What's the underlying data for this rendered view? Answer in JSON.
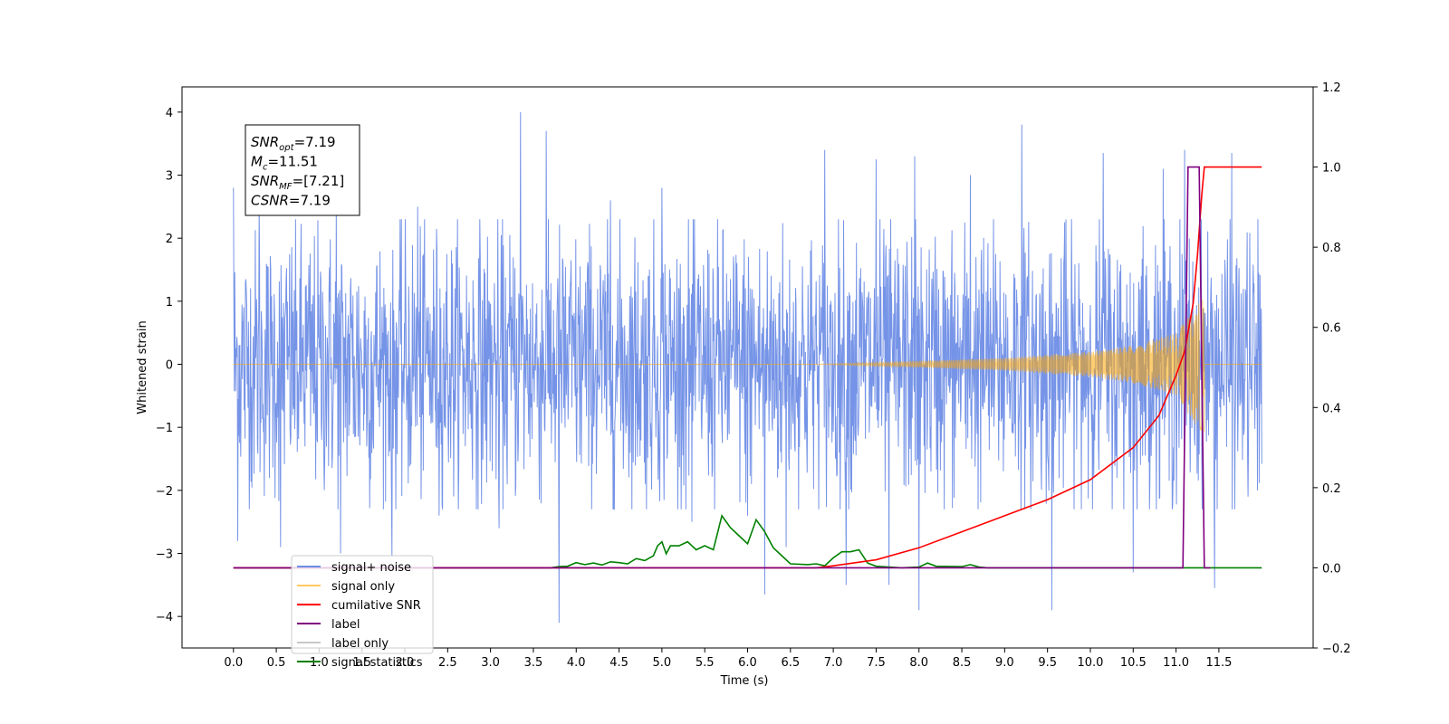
{
  "chart_data": {
    "type": "line",
    "xlabel": "Time (s)",
    "ylabel": "Whitened strain",
    "xlim": [
      -0.6,
      12.6
    ],
    "ylim": [
      -4.5,
      4.4
    ],
    "y2lim": [
      -0.2,
      1.2
    ],
    "x_ticks": [
      0.0,
      0.5,
      1.0,
      1.5,
      2.0,
      2.5,
      3.0,
      3.5,
      4.0,
      4.5,
      5.0,
      5.5,
      6.0,
      6.5,
      7.0,
      7.5,
      8.0,
      8.5,
      9.0,
      9.5,
      10.0,
      10.5,
      11.0,
      11.5
    ],
    "x_tick_labels": [
      "0.0",
      "0.5",
      "1.0",
      "1.5",
      "2.0",
      "2.5",
      "3.0",
      "3.5",
      "4.0",
      "4.5",
      "5.0",
      "5.5",
      "6.0",
      "6.5",
      "7.0",
      "7.5",
      "8.0",
      "8.5",
      "9.0",
      "9.5",
      "10.0",
      "10.5",
      "11.0",
      "11.5"
    ],
    "y_ticks": [
      -4,
      -3,
      -2,
      -1,
      0,
      1,
      2,
      3,
      4
    ],
    "y_tick_labels": [
      "−4",
      "−3",
      "−2",
      "−1",
      "0",
      "1",
      "2",
      "3",
      "4"
    ],
    "y2_ticks": [
      -0.2,
      0.0,
      0.2,
      0.4,
      0.6,
      0.8,
      1.0,
      1.2
    ],
    "y2_tick_labels": [
      "−0.2",
      "0.0",
      "0.2",
      "0.4",
      "0.6",
      "0.8",
      "1.0",
      "1.2"
    ],
    "grid": false,
    "legend_position": "lower-left",
    "info_box": {
      "lines": [
        {
          "base": "SNR",
          "sub": "opt",
          "value": "=7.19"
        },
        {
          "base": "M",
          "sub": "c",
          "value": "=11.51"
        },
        {
          "base": "SNR",
          "sub": "MF",
          "value": "=[7.21]"
        },
        {
          "base": "CSNR",
          "sub": "",
          "value": "=7.19"
        }
      ]
    },
    "series": [
      {
        "name": "signal+ noise",
        "axis": "left",
        "color": "#6f8ee6",
        "t_range": [
          0.0,
          12.0
        ],
        "envelope_typical": [
          -1.6,
          1.6
        ],
        "spike_points": [
          {
            "x": 0.0,
            "y": 2.8
          },
          {
            "x": 0.05,
            "y": -2.8
          },
          {
            "x": 0.3,
            "y": 2.5
          },
          {
            "x": 0.55,
            "y": -2.9
          },
          {
            "x": 1.2,
            "y": 2.45
          },
          {
            "x": 1.25,
            "y": -3.0
          },
          {
            "x": 1.85,
            "y": -3.05
          },
          {
            "x": 2.15,
            "y": 2.5
          },
          {
            "x": 2.4,
            "y": -2.4
          },
          {
            "x": 3.1,
            "y": -2.6
          },
          {
            "x": 3.35,
            "y": 4.0
          },
          {
            "x": 3.65,
            "y": 3.7
          },
          {
            "x": 3.8,
            "y": -4.1
          },
          {
            "x": 4.4,
            "y": 2.6
          },
          {
            "x": 5.0,
            "y": 2.8
          },
          {
            "x": 5.35,
            "y": -2.5
          },
          {
            "x": 6.0,
            "y": -2.4
          },
          {
            "x": 6.2,
            "y": -3.65
          },
          {
            "x": 6.45,
            "y": -2.9
          },
          {
            "x": 6.9,
            "y": 3.4
          },
          {
            "x": 7.15,
            "y": -3.5
          },
          {
            "x": 7.5,
            "y": 3.25
          },
          {
            "x": 7.65,
            "y": -3.5
          },
          {
            "x": 7.95,
            "y": 3.3
          },
          {
            "x": 8.0,
            "y": -3.9
          },
          {
            "x": 8.6,
            "y": 3.0
          },
          {
            "x": 9.2,
            "y": 3.8
          },
          {
            "x": 9.55,
            "y": -3.9
          },
          {
            "x": 10.15,
            "y": 3.35
          },
          {
            "x": 10.5,
            "y": -3.3
          },
          {
            "x": 10.85,
            "y": 3.1
          },
          {
            "x": 11.1,
            "y": 3.4
          },
          {
            "x": 11.45,
            "y": -3.55
          },
          {
            "x": 11.65,
            "y": 3.35
          },
          {
            "x": 11.95,
            "y": -2.0
          }
        ]
      },
      {
        "name": "signal only",
        "axis": "left",
        "color": "#ffa500",
        "t_range": [
          0.0,
          12.0
        ],
        "chirp_start": 6.8,
        "chirp_peak": 11.33,
        "amplitude_points": [
          [
            6.8,
            0.0
          ],
          [
            8.0,
            0.05
          ],
          [
            9.0,
            0.1
          ],
          [
            10.0,
            0.2
          ],
          [
            10.5,
            0.3
          ],
          [
            11.0,
            0.5
          ],
          [
            11.25,
            1.0
          ],
          [
            11.33,
            1.1
          ]
        ]
      },
      {
        "name": "cumilative SNR",
        "axis": "right",
        "color": "#ff0000",
        "points": [
          [
            0.0,
            0.0
          ],
          [
            6.8,
            0.0
          ],
          [
            7.0,
            0.005
          ],
          [
            7.5,
            0.02
          ],
          [
            8.0,
            0.05
          ],
          [
            8.5,
            0.09
          ],
          [
            9.0,
            0.13
          ],
          [
            9.5,
            0.17
          ],
          [
            10.0,
            0.22
          ],
          [
            10.5,
            0.3
          ],
          [
            10.8,
            0.38
          ],
          [
            11.0,
            0.48
          ],
          [
            11.1,
            0.54
          ],
          [
            11.2,
            0.66
          ],
          [
            11.25,
            0.78
          ],
          [
            11.3,
            0.93
          ],
          [
            11.33,
            1.0
          ],
          [
            12.0,
            1.0
          ]
        ]
      },
      {
        "name": "label",
        "axis": "right",
        "color": "#800080",
        "points": [
          [
            0.0,
            0.0
          ],
          [
            11.08,
            0.0
          ],
          [
            11.14,
            1.0
          ],
          [
            11.27,
            1.0
          ],
          [
            11.33,
            0.0
          ],
          [
            11.4,
            0.0
          ]
        ]
      },
      {
        "name": "label only",
        "axis": "right",
        "color": "#c8c8c8",
        "legend_only": true,
        "points": []
      },
      {
        "name": "signal statistics",
        "axis": "right",
        "color": "#008000",
        "points": [
          [
            0.0,
            0.0
          ],
          [
            3.7,
            0.0
          ],
          [
            3.8,
            0.003
          ],
          [
            3.9,
            0.004
          ],
          [
            4.0,
            0.013
          ],
          [
            4.1,
            0.008
          ],
          [
            4.2,
            0.012
          ],
          [
            4.3,
            0.007
          ],
          [
            4.4,
            0.015
          ],
          [
            4.5,
            0.013
          ],
          [
            4.6,
            0.01
          ],
          [
            4.7,
            0.023
          ],
          [
            4.8,
            0.018
          ],
          [
            4.9,
            0.03
          ],
          [
            4.95,
            0.055
          ],
          [
            5.0,
            0.065
          ],
          [
            5.05,
            0.035
          ],
          [
            5.1,
            0.055
          ],
          [
            5.2,
            0.055
          ],
          [
            5.3,
            0.065
          ],
          [
            5.4,
            0.045
          ],
          [
            5.5,
            0.055
          ],
          [
            5.6,
            0.045
          ],
          [
            5.7,
            0.13
          ],
          [
            5.8,
            0.1
          ],
          [
            5.9,
            0.08
          ],
          [
            6.0,
            0.06
          ],
          [
            6.1,
            0.12
          ],
          [
            6.2,
            0.09
          ],
          [
            6.3,
            0.05
          ],
          [
            6.4,
            0.03
          ],
          [
            6.5,
            0.01
          ],
          [
            6.7,
            0.008
          ],
          [
            6.8,
            0.01
          ],
          [
            6.9,
            0.005
          ],
          [
            7.0,
            0.025
          ],
          [
            7.1,
            0.04
          ],
          [
            7.2,
            0.04
          ],
          [
            7.3,
            0.045
          ],
          [
            7.4,
            0.012
          ],
          [
            7.5,
            0.004
          ],
          [
            7.8,
            0.0
          ],
          [
            8.0,
            0.002
          ],
          [
            8.1,
            0.012
          ],
          [
            8.2,
            0.004
          ],
          [
            8.5,
            0.003
          ],
          [
            8.6,
            0.008
          ],
          [
            8.7,
            0.002
          ],
          [
            8.8,
            0.0
          ],
          [
            12.0,
            0.0
          ]
        ]
      }
    ]
  }
}
